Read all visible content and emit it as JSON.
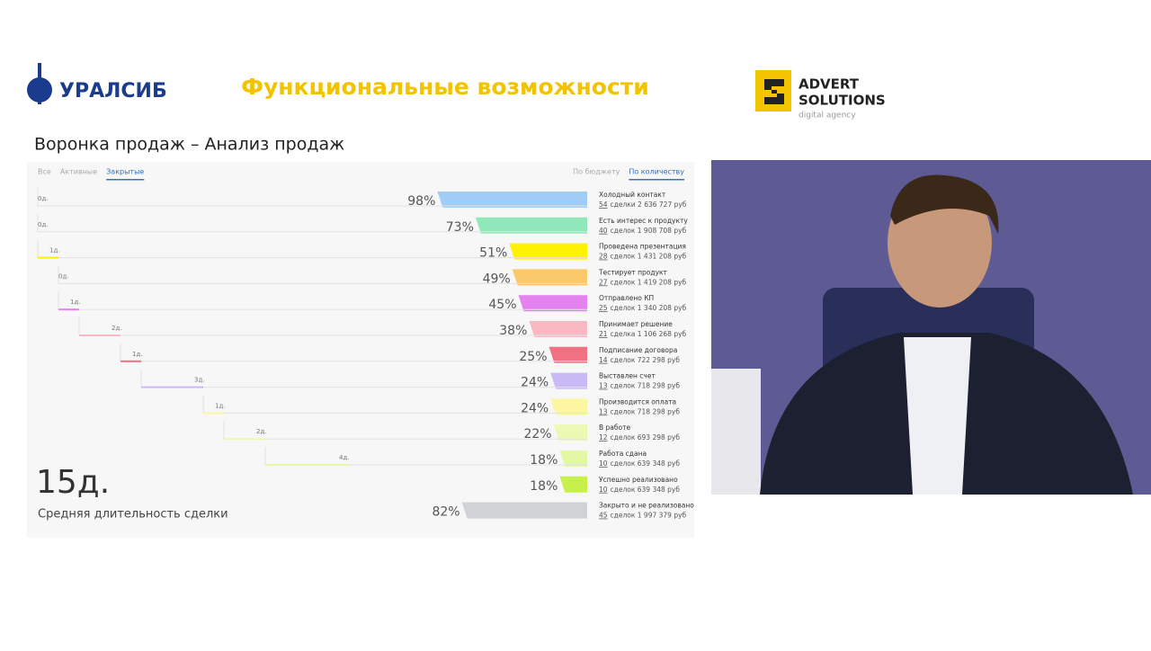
{
  "header": {
    "logo_left": "УРАЛСИБ",
    "title": "Функциональные возможности",
    "logo_right": {
      "line1": "ADVERT",
      "line2": "SOLUTIONS",
      "line3": "digital agency"
    }
  },
  "subtitle": "Воронка продаж – Анализ продаж",
  "tabs": [
    "Все",
    "Активные",
    "Закрытые"
  ],
  "active_tab": 2,
  "view_tabs": [
    "По бюджету",
    "По количеству"
  ],
  "active_view_tab": 1,
  "funnel": {
    "stages": [
      "Холодный контакт",
      "Есть интерес к продукту",
      "Проведена презентация",
      "Тестирует продукт",
      "Отправлено КП",
      "Принимает решение",
      "Подписание договора",
      "Выставлен счет",
      "Производится оплата",
      "В работе",
      "Работа сдана",
      "Успешно реализовано",
      "Закрыто и не реализовано"
    ],
    "percents": [
      98,
      73,
      51,
      49,
      45,
      38,
      25,
      24,
      24,
      22,
      18,
      18,
      82
    ],
    "percent_labels": [
      "98%",
      "73%",
      "51%",
      "49%",
      "45%",
      "38%",
      "25%",
      "24%",
      "24%",
      "22%",
      "18%",
      "18%",
      "82%"
    ],
    "deals": [
      54,
      40,
      28,
      27,
      25,
      21,
      14,
      13,
      13,
      12,
      10,
      10,
      45
    ],
    "details": [
      "сделки 2 636 727 руб",
      "сделок 1 908 708 руб",
      "сделок 1 431 208 руб",
      "сделок 1 419 208 руб",
      "сделок 1 340 208 руб",
      "сделка 1 106 268 руб",
      "сделок 722 298 руб",
      "сделок 718 298 руб",
      "сделок 718 298 руб",
      "сделок 693 298 руб",
      "сделок 639 348 руб",
      "сделок 639 348 руб",
      "сделок 1 997 379 руб"
    ],
    "colors": [
      "#9fcdf5",
      "#8ee8b9",
      "#fff200",
      "#fbc86a",
      "#e582ef",
      "#f9b9c3",
      "#f07282",
      "#c9b9f4",
      "#fdf6a0",
      "#ecf9b2",
      "#e2f8a6",
      "#c7f04b",
      "#d0d2d6"
    ],
    "days": [
      0,
      0,
      1,
      0,
      1,
      2,
      1,
      3,
      1,
      2,
      4
    ],
    "day_labels": [
      "0д.",
      "0д.",
      "1д.",
      "0д.",
      "1д.",
      "2д.",
      "1д.",
      "3д.",
      "1д.",
      "2д.",
      "4д."
    ]
  },
  "average": {
    "value": "15д.",
    "label": "Средняя длительность сделки"
  }
}
